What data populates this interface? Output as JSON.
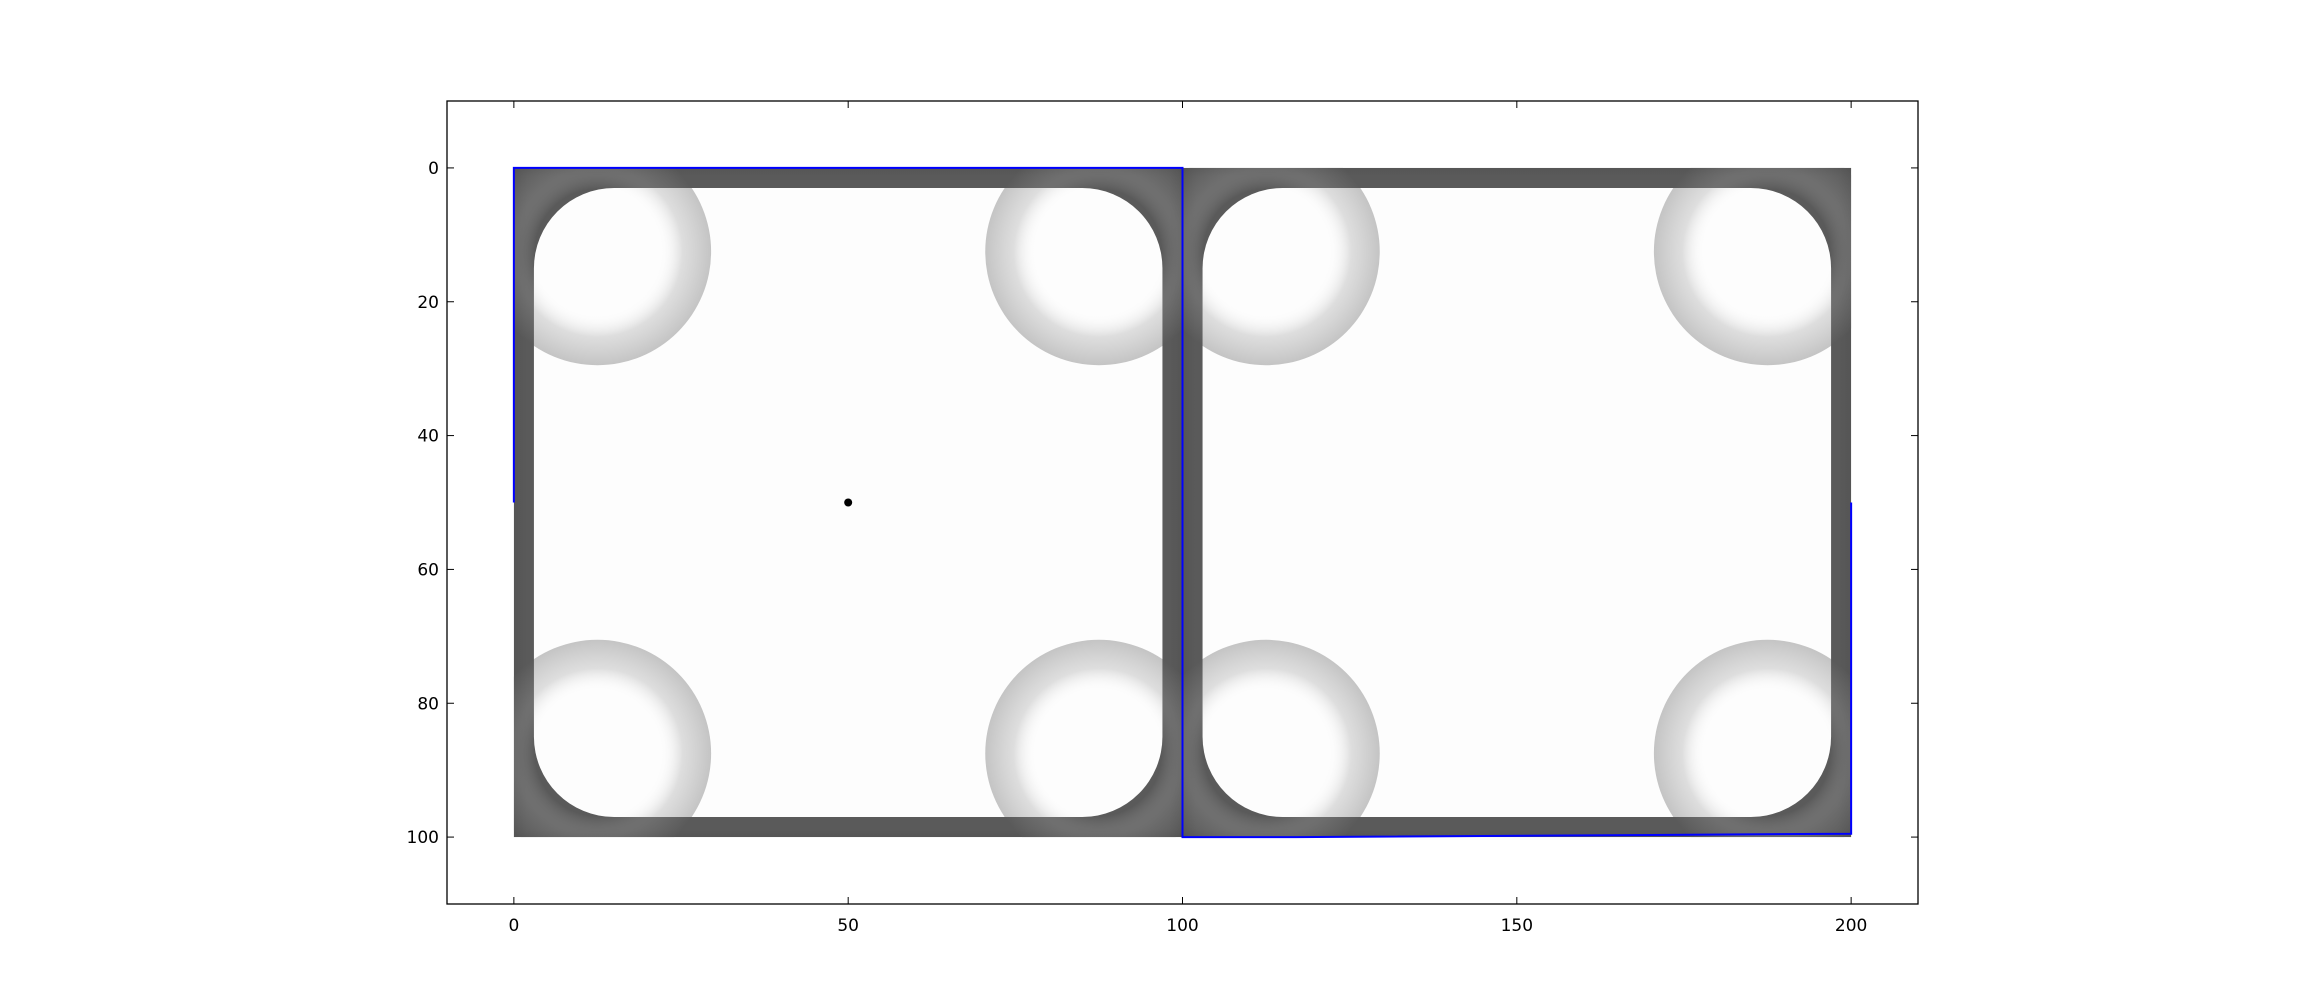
{
  "chart_data": {
    "type": "heatmap",
    "title": "",
    "xlabel": "",
    "ylabel": "",
    "xlim": [
      -10,
      210
    ],
    "ylim": [
      110,
      -10
    ],
    "y_axis_inverted": true,
    "grid": false,
    "legend": "none",
    "colormap": "grayscale",
    "x_ticks": [
      0,
      50,
      100,
      150,
      200
    ],
    "y_ticks": [
      0,
      20,
      40,
      60,
      80,
      100
    ],
    "x_tick_labels": [
      "0",
      "50",
      "100",
      "150",
      "200"
    ],
    "y_tick_labels": [
      "0",
      "20",
      "40",
      "60",
      "80",
      "100"
    ],
    "images": [
      {
        "x_range": [
          0,
          100
        ],
        "y_range": [
          0,
          100
        ],
        "content": "white square with dark gray rounded corners and borders"
      },
      {
        "x_range": [
          100,
          200
        ],
        "y_range": [
          0,
          100
        ],
        "content": "white square with dark gray rounded corners and borders"
      }
    ],
    "point": {
      "x": 50,
      "y": 50,
      "color": "#000000"
    },
    "outline": {
      "color": "#0000ff",
      "points": [
        [
          0,
          50
        ],
        [
          0,
          0
        ],
        [
          100,
          0
        ],
        [
          100,
          100
        ],
        [
          117,
          100
        ],
        [
          200,
          99.5
        ],
        [
          200,
          50
        ]
      ]
    },
    "colors": {
      "axes_frame": "#000000",
      "background": "#ffffff",
      "outline": "#0000ff",
      "border_dark": "#5a5a5a",
      "interior": "#fdfdfd"
    }
  }
}
